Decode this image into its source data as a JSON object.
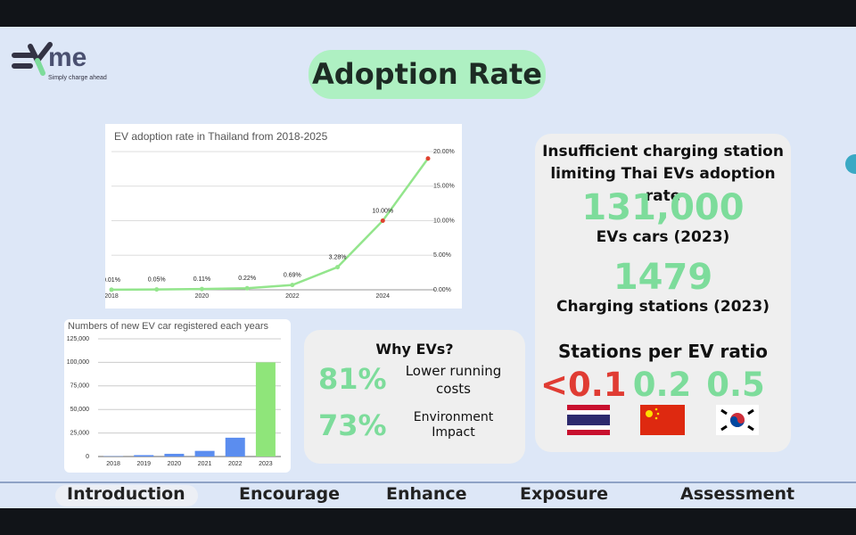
{
  "logo": {
    "mark": "me",
    "tagline": "Simply charge ahead"
  },
  "title": "Adoption Rate",
  "chart_data": [
    {
      "type": "line",
      "title": "EV adoption rate in Thailand from 2018-2025",
      "x": [
        2018,
        2019,
        2020,
        2021,
        2022,
        2023,
        2024,
        2025
      ],
      "values": [
        0.01,
        0.05,
        0.11,
        0.22,
        0.69,
        3.28,
        10,
        19
      ],
      "value_labels": [
        "0.01%",
        "0.05%",
        "0.11%",
        "0.22%",
        "0.69%",
        "3.28%",
        "10.00%",
        null
      ],
      "color": "#93e58c",
      "point_colors": [
        "#93e58c",
        "#93e58c",
        "#93e58c",
        "#93e58c",
        "#93e58c",
        "#93e58c",
        "#e0412f",
        "#e0412f"
      ],
      "xlim": [
        2018,
        2025
      ],
      "xticks": [
        2018,
        2020,
        2022,
        2024
      ],
      "ylim": [
        0,
        20
      ],
      "yticks": [
        {
          "value": 0,
          "label": "0.00%"
        },
        {
          "value": 5,
          "label": "5.00%"
        },
        {
          "value": 10,
          "label": "10.00%"
        },
        {
          "value": 15,
          "label": "15.00%"
        },
        {
          "value": 20,
          "label": "20.00%"
        }
      ],
      "grid": true
    },
    {
      "type": "bar",
      "title": "Numbers of new EV car registered each years",
      "categories": [
        "2018",
        "2019",
        "2020",
        "2021",
        "2022",
        "2023"
      ],
      "values": [
        300,
        1500,
        2900,
        6000,
        20000,
        100000
      ],
      "colors": [
        "#5b8def",
        "#5b8def",
        "#5b8def",
        "#5b8def",
        "#5b8def",
        "#8fe57a"
      ],
      "ylim": [
        0,
        125000
      ],
      "yticks": [
        0,
        {
          "value": 25000,
          "label": "25,000"
        },
        {
          "value": 50000,
          "label": "50,000"
        },
        {
          "value": 75000,
          "label": "75,000"
        },
        {
          "value": 100000,
          "label": "100,000"
        },
        {
          "value": 125000,
          "label": "125,000"
        }
      ],
      "grid": true
    }
  ],
  "why": {
    "heading": "Why EVs?",
    "items": [
      {
        "value": "81%",
        "label": "Lower running costs"
      },
      {
        "value": "73%",
        "label": "Environment Impact"
      }
    ]
  },
  "panel": {
    "heading": "Insufficient charging station limiting Thai EVs adoption rate",
    "stats": [
      {
        "value": "131,000",
        "label": "EVs cars (2023)"
      },
      {
        "value": "1479",
        "label": "Charging stations (2023)"
      }
    ],
    "ratio_heading": "Stations per EV ratio",
    "ratios": [
      "<0.1",
      "0.2",
      "0.5"
    ]
  },
  "nav": [
    "Introduction",
    "Encourage",
    "Enhance",
    "Exposure",
    "Assessment"
  ]
}
